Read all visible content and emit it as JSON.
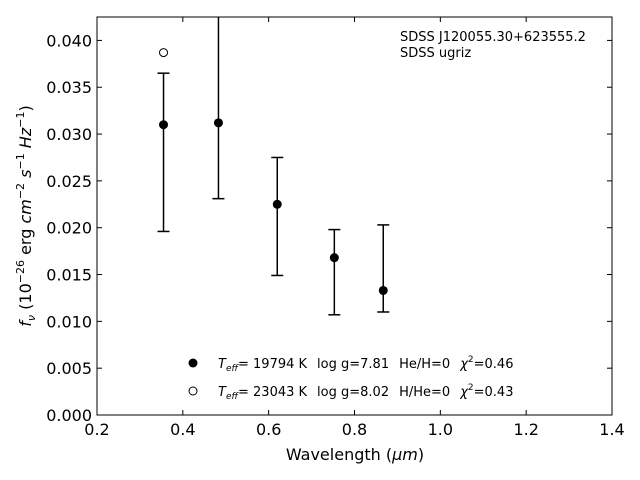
{
  "chart_data": {
    "type": "scatter",
    "xlabel_prefix": "Wavelength (",
    "xlabel_unit": "μm",
    "xlabel_suffix": ")",
    "ylabel": "f_ν (10^−26 erg cm^−2 s^−1 Hz^−1)",
    "xlim": [
      0.2,
      1.4
    ],
    "ylim": [
      0.0,
      0.0425
    ],
    "x_ticks": [
      "0.2",
      "0.4",
      "0.6",
      "0.8",
      "1.0",
      "1.2",
      "1.4"
    ],
    "x_tick_values": [
      0.2,
      0.4,
      0.6,
      0.8,
      1.0,
      1.2,
      1.4
    ],
    "y_ticks": [
      "0.000",
      "0.005",
      "0.010",
      "0.015",
      "0.020",
      "0.025",
      "0.030",
      "0.035",
      "0.040"
    ],
    "y_tick_values": [
      0.0,
      0.005,
      0.01,
      0.015,
      0.02,
      0.025,
      0.03,
      0.035,
      0.04
    ],
    "grid": false,
    "annotations": [
      "SDSS J120055.30+623555.2",
      "SDSS ugriz"
    ],
    "series": [
      {
        "marker": "filled-circle",
        "color": "#000000",
        "x": [
          0.355,
          0.483,
          0.62,
          0.753,
          0.867
        ],
        "y": [
          0.031,
          0.0312,
          0.0225,
          0.0168,
          0.0133
        ],
        "yerr_low": [
          0.0196,
          0.0231,
          0.0149,
          0.0107,
          0.011
        ],
        "yerr_high": [
          0.0365,
          0.043,
          0.0275,
          0.0198,
          0.0203
        ],
        "legend": {
          "teff": "= 19794 K",
          "logg": "log g=7.81",
          "comp": "He/H=0",
          "chi": "=0.46"
        }
      },
      {
        "marker": "open-circle",
        "color": "#000000",
        "x": [
          0.355
        ],
        "y": [
          0.0387
        ],
        "legend": {
          "teff": "= 23043 K",
          "logg": "log g=8.02",
          "comp": "H/He=0",
          "chi": "=0.43"
        }
      }
    ]
  }
}
